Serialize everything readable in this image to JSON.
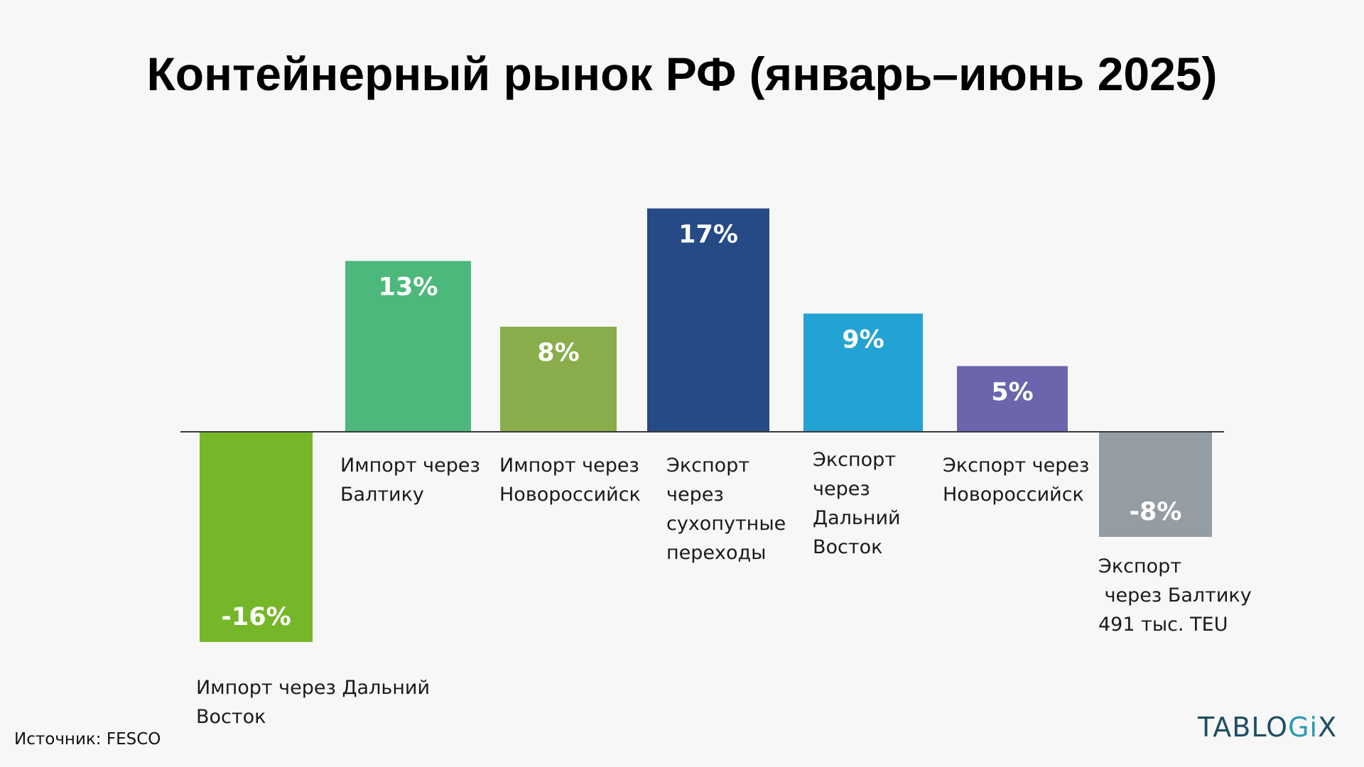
{
  "title": "Контейнерный рынок РФ (январь–июнь 2025)",
  "source": "Источник: FESCO",
  "brand": {
    "prefix": "TABLO",
    "accent": "Gi",
    "suffix": "X"
  },
  "chart_data": {
    "type": "bar",
    "title": "Контейнерный рынок РФ (январь–июнь 2025)",
    "xlabel": "",
    "ylabel": "",
    "ylim": [
      -16,
      17
    ],
    "grid": false,
    "legend": "none",
    "categories": [
      "Импорт через Дальний Восток",
      "Импорт через Балтику",
      "Импорт через Новороссийск",
      "Экспорт через сухопутные переходы",
      "Экспорт через Дальний Восток",
      "Экспорт через Новороссийск",
      "Экспорт через Балтику"
    ],
    "values": [
      -16,
      13,
      8,
      17,
      9,
      5,
      -8
    ],
    "value_labels": [
      "-16%",
      "13%",
      "8%",
      "17%",
      "9%",
      "5%",
      "-8%"
    ],
    "category_label_lines": [
      [
        "Импорт через Дальний",
        "Восток"
      ],
      [
        "Импорт через",
        "Балтику"
      ],
      [
        "Импорт через",
        "Новороссийск"
      ],
      [
        "Экспорт",
        "через",
        "сухопутные",
        "переходы"
      ],
      [
        "Экспорт",
        "через",
        "Дальний",
        "Восток"
      ],
      [
        "Экспорт через",
        "Новороссийск"
      ],
      [
        "Экспорт",
        " через Балтику",
        "491 тыс. TEU"
      ]
    ],
    "colors": [
      "#76b72a",
      "#4db87c",
      "#88ad4a",
      "#254a85",
      "#23a3d3",
      "#6a65ad",
      "#959da4"
    ]
  }
}
